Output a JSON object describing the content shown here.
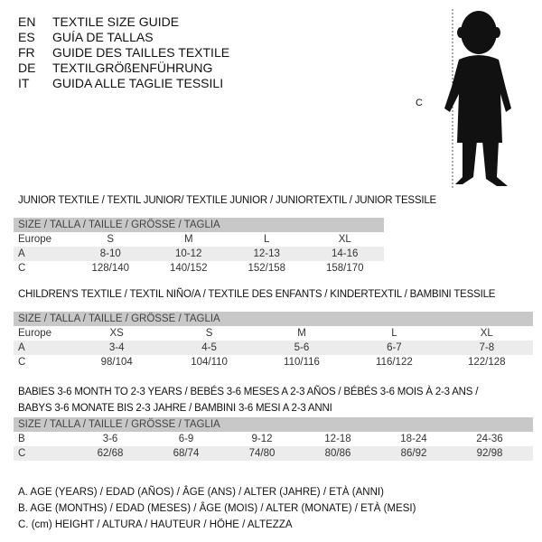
{
  "languages": [
    {
      "code": "EN",
      "title": "TEXTILE SIZE GUIDE"
    },
    {
      "code": "ES",
      "title": "GUÍA DE TALLAS"
    },
    {
      "code": "FR",
      "title": "GUIDE DES TAILLES TEXTILE"
    },
    {
      "code": "DE",
      "title": "TEXTILGRÖßENFÜHRUNG"
    },
    {
      "code": "IT",
      "title": "GUIDA ALLE TAGLIE TESSILI"
    }
  ],
  "figure": {
    "label": "C",
    "icon": "child-silhouette"
  },
  "size_header": "SIZE / TALLA / TAILLE / GRÖSSE / TAGLIA",
  "junior": {
    "title": "JUNIOR TEXTILE / TEXTIL JUNIOR/ TEXTILE JUNIOR / JUNIORTEXTIL / JUNIOR TESSILE",
    "rows": [
      {
        "label": "Europe",
        "values": [
          "S",
          "M",
          "L",
          "XL"
        ]
      },
      {
        "label": "A",
        "values": [
          "8-10",
          "10-12",
          "12-13",
          "14-16"
        ]
      },
      {
        "label": "C",
        "values": [
          "128/140",
          "140/152",
          "152/158",
          "158/170"
        ]
      }
    ]
  },
  "children": {
    "title": "CHILDREN'S TEXTILE / TEXTIL NIÑO/A / TEXTILE DES ENFANTS / KINDERTEXTIL / BAMBINI TESSILE",
    "rows": [
      {
        "label": "Europe",
        "values": [
          "XS",
          "S",
          "M",
          "L",
          "XL"
        ]
      },
      {
        "label": "A",
        "values": [
          "3-4",
          "4-5",
          "5-6",
          "6-7",
          "7-8"
        ]
      },
      {
        "label": "C",
        "values": [
          "98/104",
          "104/110",
          "110/116",
          "116/122",
          "122/128"
        ]
      }
    ]
  },
  "babies": {
    "title1": "BABIES 3-6 MONTH TO 2-3 YEARS / BEBÉS 3-6 MESES A 2-3 AÑOS / BÉBÉS 3-6 MOIS À 2-3 ANS /",
    "title2": "BABYS 3-6 MONATE BIS 2-3 JAHRE / BAMBINI 3-6 MESI A 2-3 ANNI",
    "rows": [
      {
        "label": "B",
        "values": [
          "3-6",
          "6-9",
          "9-12",
          "12-18",
          "18-24",
          "24-36"
        ]
      },
      {
        "label": "C",
        "values": [
          "62/68",
          "68/74",
          "74/80",
          "80/86",
          "86/92",
          "92/98"
        ]
      }
    ]
  },
  "notes": [
    "A. AGE (YEARS) / EDAD (AÑOS) / ÂGE (ANS) / ALTER (JAHRE) / ETÀ (ANNI)",
    "B. AGE (MONTHS) / EDAD (MESES) / ÂGE (MOIS) / ALTER (MONATE) / ETÀ (MESI)",
    "C. (cm) HEIGHT / ALTURA / HAUTEUR / HÖHE / ALTEZZA"
  ]
}
